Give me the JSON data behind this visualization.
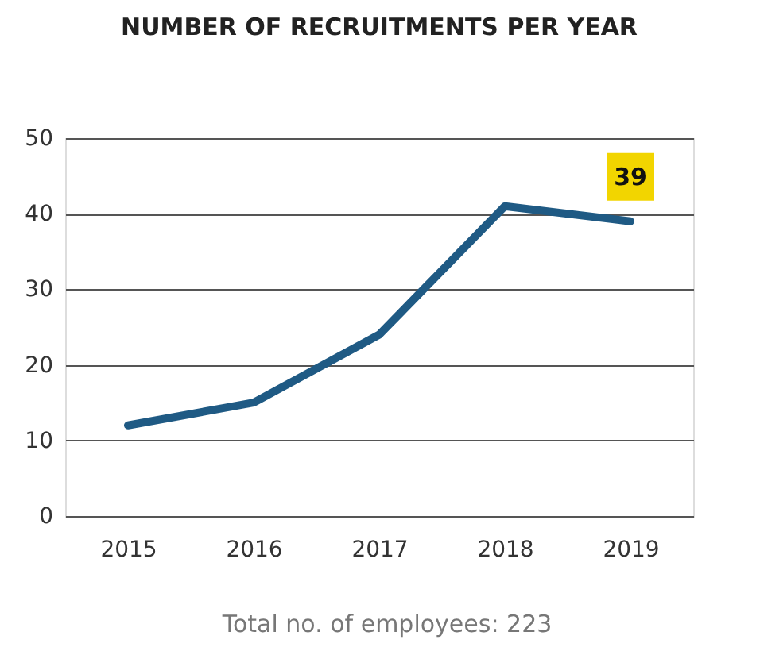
{
  "chart_data": {
    "type": "line",
    "title": "NUMBER OF RECRUITMENTS PER YEAR",
    "categories": [
      "2015",
      "2016",
      "2017",
      "2018",
      "2019"
    ],
    "series": [
      {
        "color": "#1f5a84",
        "values": [
          12,
          15,
          24,
          41,
          39
        ]
      }
    ],
    "ylim": [
      0,
      50
    ],
    "yticks": [
      0,
      10,
      20,
      30,
      40,
      50
    ],
    "grid": "y",
    "legend": false,
    "marker": "none",
    "annotations": [
      {
        "text": "39",
        "x": "2019",
        "y": 39
      },
      "Total no. of employees: 223"
    ]
  }
}
